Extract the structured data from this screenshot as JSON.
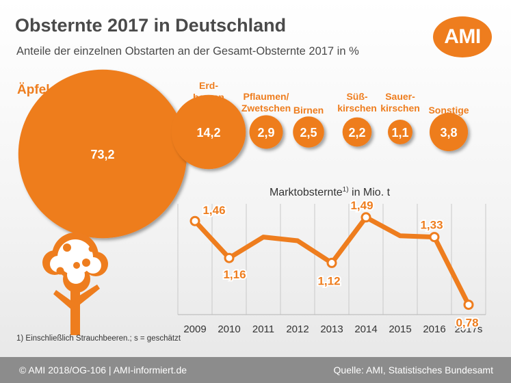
{
  "header": {
    "title": "Obsternte 2017 in Deutschland",
    "subtitle": "Anteile der einzelnen Obstarten an der Gesamt-Obsternte 2017 in %",
    "logo_text": "AMI"
  },
  "colors": {
    "accent": "#ee7d1e",
    "text": "#4a4a4a",
    "footer_bg": "#8c8c8c"
  },
  "decoration": {
    "tree_icon": "apple-tree-icon"
  },
  "chart_data": [
    {
      "type": "bubble",
      "title": "Anteile der einzelnen Obstarten an der Gesamt-Obsternte 2017 in %",
      "unit": "%",
      "items": [
        {
          "label": [
            "Äpfel"
          ],
          "value": 73.2,
          "display": "73,2"
        },
        {
          "label": [
            "Erd-",
            "beeren"
          ],
          "value": 14.2,
          "display": "14,2"
        },
        {
          "label": [
            "Pflaumen/",
            "Zwetschen"
          ],
          "value": 2.9,
          "display": "2,9"
        },
        {
          "label": [
            "Birnen"
          ],
          "value": 2.5,
          "display": "2,5"
        },
        {
          "label": [
            "Süß-",
            "kirschen"
          ],
          "value": 2.2,
          "display": "2,2"
        },
        {
          "label": [
            "Sauer-",
            "kirschen"
          ],
          "value": 1.1,
          "display": "1,1"
        },
        {
          "label": [
            "Sonstige"
          ],
          "value": 3.8,
          "display": "3,8"
        }
      ]
    },
    {
      "type": "line",
      "title": "Marktobsternte",
      "title_sup": "1)",
      "title_suffix": " in Mio. t",
      "categories": [
        "2009",
        "2010",
        "2011",
        "2012",
        "2013",
        "2014",
        "2015",
        "2016",
        "2017s"
      ],
      "values": [
        1.46,
        1.16,
        1.33,
        1.3,
        1.12,
        1.49,
        1.34,
        1.33,
        0.78
      ],
      "data_labels": [
        {
          "index": 0,
          "text": "1,46"
        },
        {
          "index": 1,
          "text": "1,16"
        },
        {
          "index": 4,
          "text": "1,12"
        },
        {
          "index": 5,
          "text": "1,49"
        },
        {
          "index": 7,
          "text": "1,33"
        },
        {
          "index": 8,
          "text": "0,78"
        }
      ],
      "ylim": [
        0.7,
        1.6
      ],
      "grid": "vertical"
    }
  ],
  "footnote": "1) Einschließlich Strauchbeeren.; s = geschätzt",
  "footer": {
    "left": "© AMI 2018/OG-106 | AMI-informiert.de",
    "right": "Quelle: AMI, Statistisches Bundesamt"
  }
}
